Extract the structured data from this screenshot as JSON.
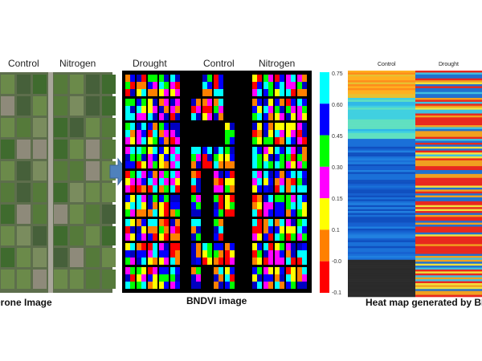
{
  "drone": {
    "labels": [
      "Control",
      "Nitrogen"
    ],
    "caption": "Drone Image"
  },
  "bndvi": {
    "labels": [
      "Drought",
      "Control",
      "Nitrogen"
    ],
    "caption": "BNDVI image",
    "colorbar": [
      "0.75",
      "0.60",
      "0.45",
      "0.30",
      "0.15",
      "0.1",
      "-0.0",
      "-0.1"
    ]
  },
  "heatmap": {
    "labels": [
      "Control",
      "Drought"
    ],
    "caption": "Heat map generated by BNDVI"
  }
}
